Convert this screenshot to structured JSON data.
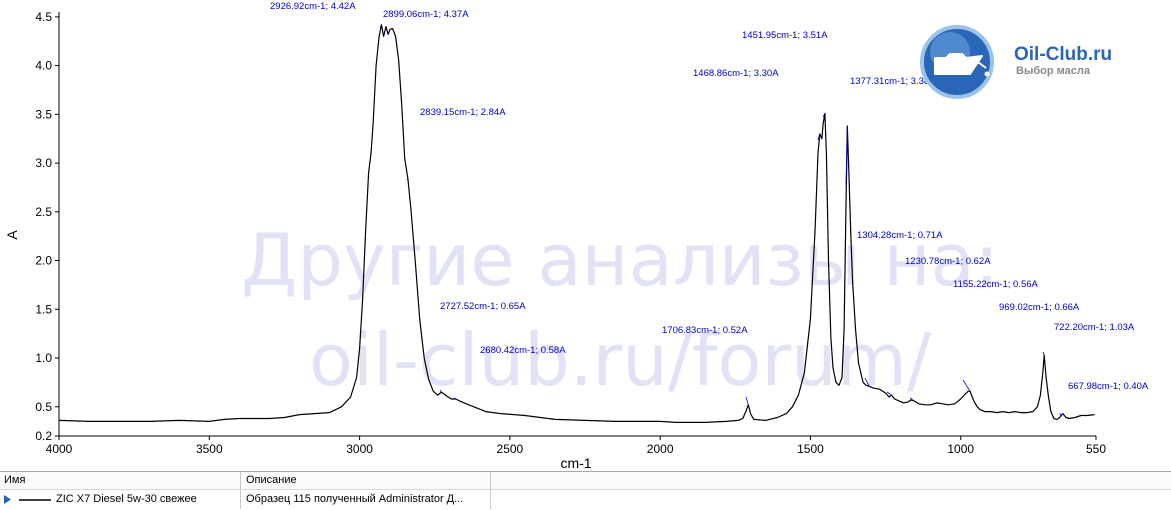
{
  "logo": {
    "title": "Oil-Club.ru",
    "subtitle": "Выбор масла"
  },
  "watermark": {
    "line1": "Другие анализы на:",
    "line2": "oil-club.ru/forum/"
  },
  "legend_table": {
    "headers": [
      "Имя",
      "Описание"
    ],
    "rows": [
      {
        "name": "ZIC X7 Diesel 5w-30 свежее",
        "description": "Образец 115 полученный Administrator Д..."
      }
    ]
  },
  "colors": {
    "spectrum": "#000000",
    "annotation": "#0000c8",
    "watermark": "#e2e2f6"
  },
  "chart_data": {
    "type": "line",
    "xlabel": "cm-1",
    "ylabel": "A",
    "xlim": [
      4000,
      550
    ],
    "ylim": [
      0.2,
      4.55
    ],
    "x_reversed": true,
    "grid": false,
    "xticks": [
      4000,
      3500,
      3000,
      2500,
      2000,
      1500,
      1000,
      550
    ],
    "xtick_labels": [
      "4000",
      "3500",
      "3000",
      "2500",
      "2000",
      "1500",
      "1000",
      "550"
    ],
    "yticks": [
      0.2,
      0.5,
      1.0,
      1.5,
      2.0,
      2.5,
      3.0,
      3.5,
      4.0,
      4.5
    ],
    "ytick_labels": [
      "0.2",
      "0.5",
      "1.0",
      "1.5",
      "2.0",
      "2.5",
      "3.0",
      "3.5",
      "4.0",
      "4.5"
    ],
    "series": [
      {
        "name": "ZIC X7 Diesel 5w-30 свежее",
        "points": [
          [
            4000,
            0.36
          ],
          [
            3900,
            0.35
          ],
          [
            3800,
            0.35
          ],
          [
            3700,
            0.35
          ],
          [
            3600,
            0.36
          ],
          [
            3500,
            0.35
          ],
          [
            3450,
            0.37
          ],
          [
            3400,
            0.38
          ],
          [
            3300,
            0.38
          ],
          [
            3250,
            0.39
          ],
          [
            3200,
            0.42
          ],
          [
            3150,
            0.43
          ],
          [
            3100,
            0.44
          ],
          [
            3060,
            0.5
          ],
          [
            3030,
            0.6
          ],
          [
            3010,
            0.8
          ],
          [
            3000,
            1.1
          ],
          [
            2990,
            1.6
          ],
          [
            2980,
            2.3
          ],
          [
            2970,
            2.9
          ],
          [
            2962,
            3.1
          ],
          [
            2955,
            3.4
          ],
          [
            2945,
            4.0
          ],
          [
            2935,
            4.3
          ],
          [
            2926.92,
            4.42
          ],
          [
            2920,
            4.3
          ],
          [
            2912,
            4.4
          ],
          [
            2905,
            4.32
          ],
          [
            2899.06,
            4.37
          ],
          [
            2890,
            4.38
          ],
          [
            2880,
            4.3
          ],
          [
            2870,
            4.05
          ],
          [
            2860,
            3.6
          ],
          [
            2850,
            3.05
          ],
          [
            2839.15,
            2.84
          ],
          [
            2830,
            2.55
          ],
          [
            2815,
            2.0
          ],
          [
            2800,
            1.4
          ],
          [
            2785,
            1.0
          ],
          [
            2770,
            0.78
          ],
          [
            2755,
            0.66
          ],
          [
            2740,
            0.62
          ],
          [
            2727.52,
            0.65
          ],
          [
            2710,
            0.61
          ],
          [
            2695,
            0.58
          ],
          [
            2680.42,
            0.58
          ],
          [
            2660,
            0.55
          ],
          [
            2620,
            0.5
          ],
          [
            2580,
            0.45
          ],
          [
            2530,
            0.43
          ],
          [
            2450,
            0.41
          ],
          [
            2350,
            0.37
          ],
          [
            2250,
            0.36
          ],
          [
            2150,
            0.35
          ],
          [
            2050,
            0.35
          ],
          [
            2000,
            0.35
          ],
          [
            1950,
            0.34
          ],
          [
            1850,
            0.34
          ],
          [
            1780,
            0.35
          ],
          [
            1740,
            0.36
          ],
          [
            1725,
            0.38
          ],
          [
            1715,
            0.45
          ],
          [
            1706.83,
            0.52
          ],
          [
            1698,
            0.42
          ],
          [
            1688,
            0.37
          ],
          [
            1650,
            0.36
          ],
          [
            1610,
            0.39
          ],
          [
            1580,
            0.43
          ],
          [
            1560,
            0.5
          ],
          [
            1540,
            0.62
          ],
          [
            1520,
            0.85
          ],
          [
            1500,
            1.4
          ],
          [
            1485,
            2.3
          ],
          [
            1475,
            3.1
          ],
          [
            1468.86,
            3.3
          ],
          [
            1462,
            3.25
          ],
          [
            1458,
            3.4
          ],
          [
            1451.95,
            3.51
          ],
          [
            1447,
            3.1
          ],
          [
            1440,
            2.0
          ],
          [
            1432,
            1.2
          ],
          [
            1425,
            0.9
          ],
          [
            1415,
            0.75
          ],
          [
            1405,
            0.72
          ],
          [
            1395,
            0.8
          ],
          [
            1388,
            1.3
          ],
          [
            1382,
            2.5
          ],
          [
            1377.31,
            3.38
          ],
          [
            1372,
            2.9
          ],
          [
            1366,
            2.3
          ],
          [
            1360,
            1.8
          ],
          [
            1350,
            1.3
          ],
          [
            1340,
            0.95
          ],
          [
            1325,
            0.75
          ],
          [
            1315,
            0.72
          ],
          [
            1304.28,
            0.71
          ],
          [
            1290,
            0.69
          ],
          [
            1270,
            0.68
          ],
          [
            1250,
            0.64
          ],
          [
            1238,
            0.6
          ],
          [
            1230.78,
            0.62
          ],
          [
            1220,
            0.58
          ],
          [
            1205,
            0.56
          ],
          [
            1190,
            0.54
          ],
          [
            1175,
            0.55
          ],
          [
            1165,
            0.57
          ],
          [
            1155.22,
            0.56
          ],
          [
            1140,
            0.53
          ],
          [
            1120,
            0.52
          ],
          [
            1100,
            0.52
          ],
          [
            1080,
            0.54
          ],
          [
            1060,
            0.53
          ],
          [
            1040,
            0.52
          ],
          [
            1020,
            0.53
          ],
          [
            1000,
            0.58
          ],
          [
            985,
            0.63
          ],
          [
            975,
            0.66
          ],
          [
            969.02,
            0.66
          ],
          [
            962,
            0.6
          ],
          [
            955,
            0.55
          ],
          [
            945,
            0.5
          ],
          [
            935,
            0.47
          ],
          [
            920,
            0.45
          ],
          [
            900,
            0.45
          ],
          [
            880,
            0.44
          ],
          [
            860,
            0.45
          ],
          [
            840,
            0.44
          ],
          [
            820,
            0.45
          ],
          [
            800,
            0.44
          ],
          [
            780,
            0.44
          ],
          [
            760,
            0.45
          ],
          [
            745,
            0.5
          ],
          [
            735,
            0.62
          ],
          [
            727,
            0.85
          ],
          [
            722.2,
            1.03
          ],
          [
            716,
            0.8
          ],
          [
            708,
            0.6
          ],
          [
            700,
            0.45
          ],
          [
            690,
            0.38
          ],
          [
            680,
            0.37
          ],
          [
            674,
            0.38
          ],
          [
            667.98,
            0.4
          ],
          [
            660,
            0.43
          ],
          [
            650,
            0.39
          ],
          [
            640,
            0.38
          ],
          [
            620,
            0.39
          ],
          [
            600,
            0.41
          ],
          [
            580,
            0.41
          ],
          [
            555,
            0.42
          ]
        ]
      }
    ],
    "annotations": [
      {
        "label": "2926.92cm-1; 4.42A",
        "x": 2926.92,
        "y": 4.42
      },
      {
        "label": "2899.06cm-1; 4.37A",
        "x": 2899.06,
        "y": 4.37
      },
      {
        "label": "2839.15cm-1; 2.84A",
        "x": 2839.15,
        "y": 2.84
      },
      {
        "label": "2727.52cm-1; 0.65A",
        "x": 2727.52,
        "y": 0.65
      },
      {
        "label": "2680.42cm-1; 0.58A",
        "x": 2680.42,
        "y": 0.58
      },
      {
        "label": "1706.83cm-1; 0.52A",
        "x": 1706.83,
        "y": 0.52
      },
      {
        "label": "1468.86cm-1; 3.30A",
        "x": 1468.86,
        "y": 3.3
      },
      {
        "label": "1451.95cm-1; 3.51A",
        "x": 1451.95,
        "y": 3.51
      },
      {
        "label": "1377.31cm-1; 3.38A",
        "x": 1377.31,
        "y": 3.38
      },
      {
        "label": "1304.28cm-1; 0.71A",
        "x": 1304.28,
        "y": 0.71
      },
      {
        "label": "1230.78cm-1; 0.62A",
        "x": 1230.78,
        "y": 0.62
      },
      {
        "label": "1155.22cm-1; 0.56A",
        "x": 1155.22,
        "y": 0.56
      },
      {
        "label": "969.02cm-1; 0.66A",
        "x": 969.02,
        "y": 0.66
      },
      {
        "label": "722.20cm-1; 1.03A",
        "x": 722.2,
        "y": 1.03
      },
      {
        "label": "667.98cm-1; 0.40A",
        "x": 667.98,
        "y": 0.4
      }
    ]
  }
}
